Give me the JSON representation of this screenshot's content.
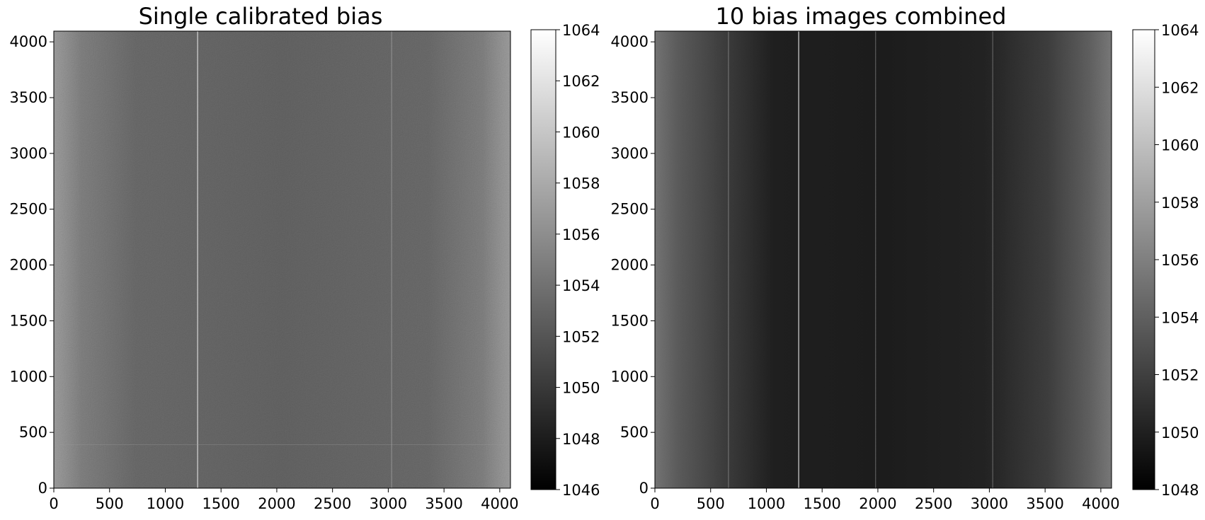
{
  "chart_data": [
    {
      "type": "heatmap",
      "title": "Single calibrated bias",
      "colormap": "gray",
      "xlim": [
        0,
        4096
      ],
      "ylim": [
        0,
        4096
      ],
      "xticks": [
        0,
        500,
        1000,
        1500,
        2000,
        2500,
        3000,
        3500,
        4000
      ],
      "yticks": [
        0,
        500,
        1000,
        1500,
        2000,
        2500,
        3000,
        3500,
        4000
      ],
      "colorbar": {
        "range": [
          1046,
          1064
        ],
        "ticks": [
          1046,
          1048,
          1050,
          1052,
          1054,
          1056,
          1058,
          1060,
          1062,
          1064
        ]
      },
      "features": {
        "mean_level": 1052.5,
        "edge_brightening": "left and right edges brighter",
        "bright_columns": [
          1290,
          3030
        ],
        "faint_row": 390
      }
    },
    {
      "type": "heatmap",
      "title": "10 bias images combined",
      "colormap": "gray",
      "xlim": [
        0,
        4096
      ],
      "ylim": [
        0,
        4096
      ],
      "xticks": [
        0,
        500,
        1000,
        1500,
        2000,
        2500,
        3000,
        3500,
        4000
      ],
      "yticks": [
        0,
        500,
        1000,
        1500,
        2000,
        2500,
        3000,
        3500,
        4000
      ],
      "colorbar": {
        "range": [
          1048,
          1064
        ],
        "ticks": [
          1048,
          1050,
          1052,
          1054,
          1056,
          1058,
          1060,
          1062,
          1064
        ]
      },
      "features": {
        "mean_level": 1050.5,
        "edge_brightening": "left and right edges brighter",
        "bright_columns": [
          1290,
          3030,
          1980,
          660
        ]
      }
    }
  ]
}
